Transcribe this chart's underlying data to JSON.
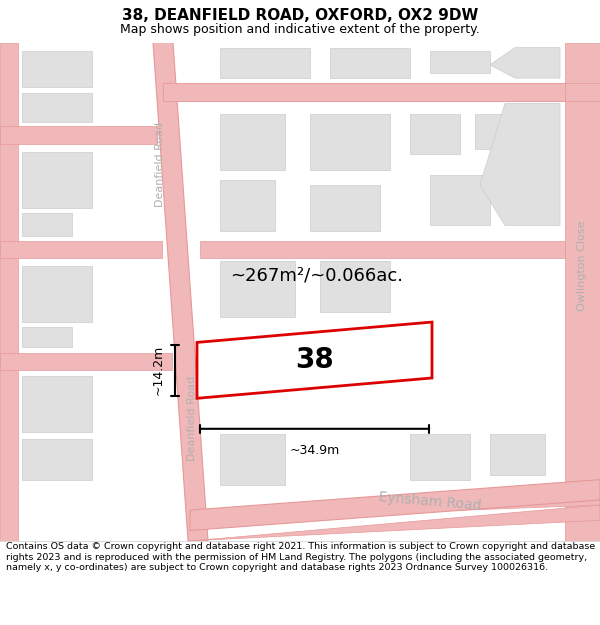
{
  "title": "38, DEANFIELD ROAD, OXFORD, OX2 9DW",
  "subtitle": "Map shows position and indicative extent of the property.",
  "footer": "Contains OS data © Crown copyright and database right 2021. This information is subject to Crown copyright and database rights 2023 and is reproduced with the permission of HM Land Registry. The polygons (including the associated geometry, namely x, y co-ordinates) are subject to Crown copyright and database rights 2023 Ordnance Survey 100026316.",
  "map_bg": "#ffffff",
  "property_number": "38",
  "area_label": "~267m²/~0.066ac.",
  "dim_width": "~34.9m",
  "dim_height": "~14.2m",
  "road_color": "#f0b8b8",
  "road_line_color": "#e89898",
  "building_color": "#e0e0e0",
  "building_edge": "#cccccc",
  "highlight_color": "#dd0000",
  "street_color": "#b0b0b0",
  "title_fontsize": 11,
  "subtitle_fontsize": 9,
  "footer_fontsize": 6.8
}
